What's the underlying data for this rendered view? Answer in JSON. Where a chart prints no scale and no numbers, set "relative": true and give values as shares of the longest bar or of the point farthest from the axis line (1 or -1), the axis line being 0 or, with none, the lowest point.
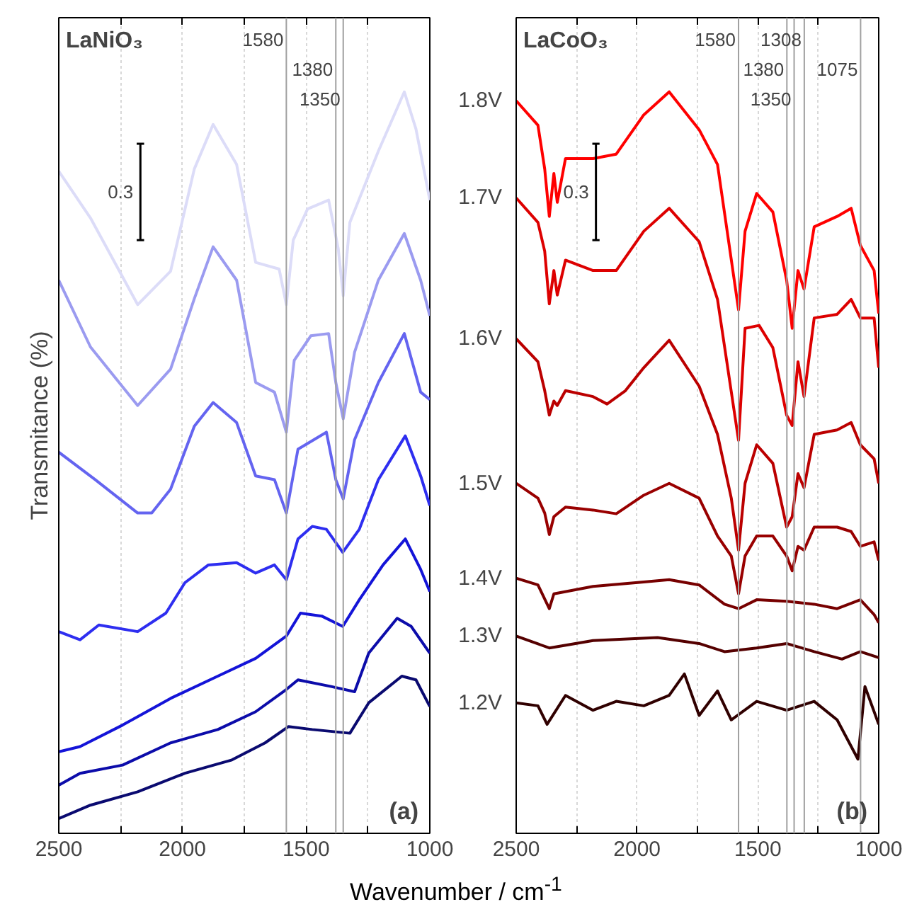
{
  "chart_data": [
    {
      "type": "line",
      "title": "LaNiO₃",
      "ylabel": "Transmitance (%)",
      "xlabel": "Wavenumber / cm$^{-1}$",
      "relative": true,
      "tick_labels": "x",
      "grid": "x",
      "legend": false,
      "marker": "none",
      "line_style": "solid",
      "xlim": [
        2500,
        1000
      ],
      "xticks": [
        2500,
        {
          "value": 2250,
          "label": null
        },
        2000,
        {
          "value": 1750,
          "label": null
        },
        1500,
        {
          "value": 1250,
          "label": null
        },
        1000
      ],
      "annotations": [
        "0.3",
        "(a)"
      ],
      "ref_lines": [
        {
          "axis": "x",
          "value": 1580,
          "label": "1580",
          "color": "#a0a0a0"
        },
        {
          "axis": "x",
          "value": 1380,
          "label": "1380",
          "color": "#a0a0a0"
        },
        {
          "axis": "x",
          "value": 1350,
          "label": "1350",
          "color": "#a0a0a0"
        }
      ],
      "series": [
        {
          "color": "#dcdcf8",
          "x": [
            2500,
            2372,
            2181,
            2048,
            1952,
            1876,
            1781,
            1704,
            1609,
            1580,
            1552,
            1494,
            1409,
            1370,
            1350,
            1323,
            1208,
            1103,
            1056,
            1000
          ],
          "values": [
            0.893,
            0.83,
            0.713,
            0.758,
            0.896,
            0.956,
            0.902,
            0.77,
            0.761,
            0.713,
            0.8,
            0.842,
            0.854,
            0.788,
            0.725,
            0.824,
            0.92,
            1.0,
            0.95,
            0.854
          ]
        },
        {
          "color": "#9b9bf0",
          "x": [
            2500,
            2372,
            2181,
            2048,
            1952,
            1876,
            1781,
            1704,
            1628,
            1580,
            1548,
            1481,
            1409,
            1380,
            1350,
            1304,
            1208,
            1103,
            1037,
            1000
          ],
          "values": [
            0.746,
            0.656,
            0.577,
            0.626,
            0.721,
            0.791,
            0.746,
            0.608,
            0.595,
            0.541,
            0.638,
            0.671,
            0.674,
            0.608,
            0.559,
            0.649,
            0.746,
            0.809,
            0.746,
            0.698
          ]
        },
        {
          "color": "#6464f0",
          "x": [
            2500,
            2353,
            2181,
            2124,
            2048,
            1952,
            1876,
            1781,
            1704,
            1628,
            1580,
            1533,
            1418,
            1380,
            1350,
            1304,
            1208,
            1103,
            1037,
            1000
          ],
          "values": [
            0.514,
            0.477,
            0.432,
            0.432,
            0.464,
            0.549,
            0.581,
            0.554,
            0.482,
            0.477,
            0.432,
            0.518,
            0.541,
            0.477,
            0.451,
            0.531,
            0.608,
            0.674,
            0.595,
            0.585
          ]
        },
        {
          "color": "#2e2ef0",
          "x": [
            2500,
            2414,
            2338,
            2181,
            2067,
            1990,
            1895,
            1781,
            1704,
            1628,
            1580,
            1533,
            1475,
            1418,
            1352,
            1285,
            1208,
            1099,
            1037,
            1000
          ],
          "values": [
            0.272,
            0.261,
            0.281,
            0.272,
            0.297,
            0.338,
            0.362,
            0.365,
            0.351,
            0.362,
            0.342,
            0.397,
            0.414,
            0.41,
            0.379,
            0.41,
            0.477,
            0.536,
            0.482,
            0.442
          ]
        },
        {
          "color": "#1414d8",
          "x": [
            2500,
            2414,
            2242,
            2048,
            1857,
            1704,
            1580,
            1523,
            1437,
            1352,
            1285,
            1189,
            1099,
            1037,
            1000
          ],
          "values": [
            0.11,
            0.117,
            0.146,
            0.182,
            0.212,
            0.236,
            0.266,
            0.297,
            0.293,
            0.279,
            0.315,
            0.362,
            0.397,
            0.356,
            0.326
          ]
        },
        {
          "color": "#0c0caa",
          "x": [
            2500,
            2414,
            2242,
            2048,
            1857,
            1704,
            1580,
            1533,
            1399,
            1304,
            1247,
            1132,
            1075,
            1000
          ],
          "values": [
            0.065,
            0.081,
            0.092,
            0.122,
            0.14,
            0.164,
            0.194,
            0.207,
            0.198,
            0.191,
            0.243,
            0.29,
            0.279,
            0.243
          ]
        },
        {
          "color": "#0a0a70",
          "x": [
            2500,
            2372,
            2181,
            1990,
            1800,
            1666,
            1571,
            1475,
            1323,
            1247,
            1113,
            1056,
            1000
          ],
          "values": [
            0.02,
            0.038,
            0.056,
            0.081,
            0.099,
            0.122,
            0.144,
            0.14,
            0.135,
            0.176,
            0.212,
            0.207,
            0.171
          ]
        }
      ]
    },
    {
      "type": "line",
      "title": "LaCoO₃",
      "relative": true,
      "tick_labels": "x",
      "grid": "x",
      "legend": false,
      "marker": "none",
      "line_style": "solid",
      "xlim": [
        2500,
        1000
      ],
      "xticks": [
        2500,
        {
          "value": 2250,
          "label": null
        },
        2000,
        {
          "value": 1750,
          "label": null
        },
        1500,
        {
          "value": 1250,
          "label": null
        },
        1000
      ],
      "annotations": [
        "0.3",
        "(b)"
      ],
      "ref_lines": [
        {
          "axis": "x",
          "value": 1580,
          "label": "1580",
          "color": "#a0a0a0"
        },
        {
          "axis": "x",
          "value": 1380,
          "label": "1380",
          "color": "#a0a0a0"
        },
        {
          "axis": "x",
          "value": 1350,
          "label": "1350",
          "color": "#a0a0a0"
        },
        {
          "axis": "x",
          "value": 1308,
          "label": "1308",
          "color": "#a0a0a0"
        },
        {
          "axis": "x",
          "value": 1075,
          "label": "1075",
          "color": "#a0a0a0"
        }
      ],
      "series": [
        {
          "name": "1.8V",
          "color": "#ff0000",
          "x": [
            2500,
            2410,
            2382,
            2363,
            2344,
            2330,
            2296,
            2182,
            2086,
            1972,
            1867,
            1743,
            1667,
            1580,
            1553,
            1505,
            1438,
            1381,
            1358,
            1334,
            1309,
            1267,
            1172,
            1114,
            1076,
            1019,
            1000
          ],
          "values": [
            0.988,
            0.955,
            0.896,
            0.832,
            0.89,
            0.851,
            0.91,
            0.91,
            0.916,
            0.969,
            1.0,
            0.949,
            0.902,
            0.706,
            0.812,
            0.863,
            0.838,
            0.746,
            0.681,
            0.759,
            0.734,
            0.818,
            0.832,
            0.843,
            0.793,
            0.759,
            0.701
          ]
        },
        {
          "name": "1.7V",
          "color": "#dd0000",
          "x": [
            2500,
            2410,
            2382,
            2363,
            2344,
            2330,
            2296,
            2182,
            2086,
            1972,
            1867,
            1743,
            1667,
            1580,
            1553,
            1495,
            1438,
            1381,
            1358,
            1334,
            1309,
            1267,
            1172,
            1114,
            1076,
            1019,
            1000
          ],
          "values": [
            0.857,
            0.824,
            0.785,
            0.714,
            0.759,
            0.726,
            0.773,
            0.759,
            0.759,
            0.812,
            0.843,
            0.798,
            0.72,
            0.53,
            0.681,
            0.685,
            0.655,
            0.564,
            0.55,
            0.636,
            0.589,
            0.695,
            0.7,
            0.72,
            0.695,
            0.695,
            0.628
          ]
        },
        {
          "name": "1.6V",
          "color": "#bb0000",
          "x": [
            2500,
            2410,
            2382,
            2363,
            2344,
            2330,
            2296,
            2182,
            2124,
            2048,
            1972,
            1867,
            1743,
            1667,
            1610,
            1580,
            1553,
            1505,
            1438,
            1381,
            1358,
            1334,
            1309,
            1267,
            1172,
            1114,
            1076,
            1019,
            1000
          ],
          "values": [
            0.667,
            0.636,
            0.597,
            0.564,
            0.583,
            0.577,
            0.597,
            0.589,
            0.579,
            0.597,
            0.628,
            0.665,
            0.603,
            0.538,
            0.452,
            0.382,
            0.472,
            0.524,
            0.499,
            0.413,
            0.427,
            0.485,
            0.466,
            0.538,
            0.544,
            0.554,
            0.524,
            0.505,
            0.472
          ]
        },
        {
          "name": "1.5V",
          "color": "#990000",
          "x": [
            2500,
            2410,
            2382,
            2363,
            2344,
            2296,
            2182,
            2086,
            1972,
            1867,
            1743,
            1667,
            1610,
            1580,
            1553,
            1505,
            1438,
            1381,
            1358,
            1334,
            1309,
            1267,
            1172,
            1114,
            1076,
            1019,
            1000
          ],
          "values": [
            0.472,
            0.452,
            0.432,
            0.403,
            0.427,
            0.44,
            0.436,
            0.431,
            0.456,
            0.472,
            0.452,
            0.401,
            0.374,
            0.323,
            0.374,
            0.401,
            0.401,
            0.374,
            0.354,
            0.387,
            0.382,
            0.413,
            0.413,
            0.407,
            0.387,
            0.393,
            0.368
          ]
        },
        {
          "name": "1.4V",
          "color": "#770000",
          "x": [
            2500,
            2410,
            2363,
            2344,
            2182,
            1972,
            1867,
            1743,
            1638,
            1580,
            1505,
            1381,
            1267,
            1172,
            1076,
            1019,
            1000
          ],
          "values": [
            0.344,
            0.335,
            0.303,
            0.323,
            0.333,
            0.339,
            0.342,
            0.335,
            0.309,
            0.303,
            0.315,
            0.313,
            0.309,
            0.303,
            0.315,
            0.295,
            0.284
          ]
        },
        {
          "name": "1.3V",
          "color": "#550000",
          "x": [
            2500,
            2363,
            2182,
            1915,
            1743,
            1638,
            1505,
            1381,
            1267,
            1152,
            1076,
            1000
          ],
          "values": [
            0.266,
            0.25,
            0.26,
            0.264,
            0.256,
            0.245,
            0.25,
            0.256,
            0.245,
            0.235,
            0.245,
            0.237
          ]
        },
        {
          "name": "1.2V",
          "color": "#300000",
          "x": [
            2500,
            2410,
            2372,
            2296,
            2182,
            2086,
            1972,
            1867,
            1804,
            1743,
            1667,
            1610,
            1505,
            1381,
            1267,
            1172,
            1086,
            1057,
            1000
          ],
          "values": [
            0.176,
            0.172,
            0.147,
            0.186,
            0.166,
            0.178,
            0.172,
            0.186,
            0.215,
            0.159,
            0.192,
            0.153,
            0.178,
            0.166,
            0.178,
            0.153,
            0.1,
            0.198,
            0.147
          ]
        }
      ]
    }
  ]
}
